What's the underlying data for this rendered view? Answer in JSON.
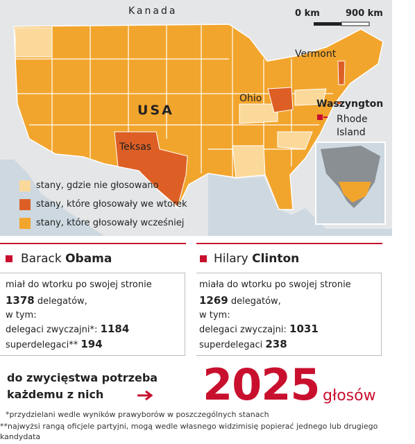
{
  "map": {
    "labels": {
      "canada": "Kanada",
      "usa": "USA",
      "vermont": "Vermont",
      "ohio": "Ohio",
      "texas": "Teksas",
      "washington": "Waszyngton",
      "rhode_island": "Rhode Island"
    },
    "scale": {
      "start": "0 km",
      "end": "900 km"
    },
    "legend": [
      "stany, gdzie nie głosowano",
      "stany, które głosowały we wtorek",
      "stany, które głosowały wcześniej"
    ]
  },
  "candidates": [
    {
      "first_name": "Barack",
      "last_name": "Obama",
      "intro": "miał do wtorku po swojej stronie",
      "delegates": 1378,
      "delegates_label": "delegatów,",
      "including": "w tym:",
      "regular_label": "delegaci zwyczajni*:",
      "regular": 1184,
      "super_label": "superdelegaci**",
      "super": 194
    },
    {
      "first_name": "Hilary",
      "last_name": "Clinton",
      "intro": "miała do wtorku po swojej stronie",
      "delegates": 1269,
      "delegates_label": "delegatów,",
      "including": "w tym:",
      "regular_label": "delegaci zwyczajni:",
      "regular": 1031,
      "super_label": "superdelegaci",
      "super": 238
    }
  ],
  "goal": {
    "text": "do zwycięstwa potrzeba każdemu z nich",
    "number": 2025,
    "unit": "głosów"
  },
  "footnotes": [
    "*przydzielani wedle wyników prawyborów w poszczególnych stanach",
    "**najwyżsi rangą oficjele partyjni, mogą wedle własnego widzimisię popierać jednego lub drugiego kandydata"
  ]
}
